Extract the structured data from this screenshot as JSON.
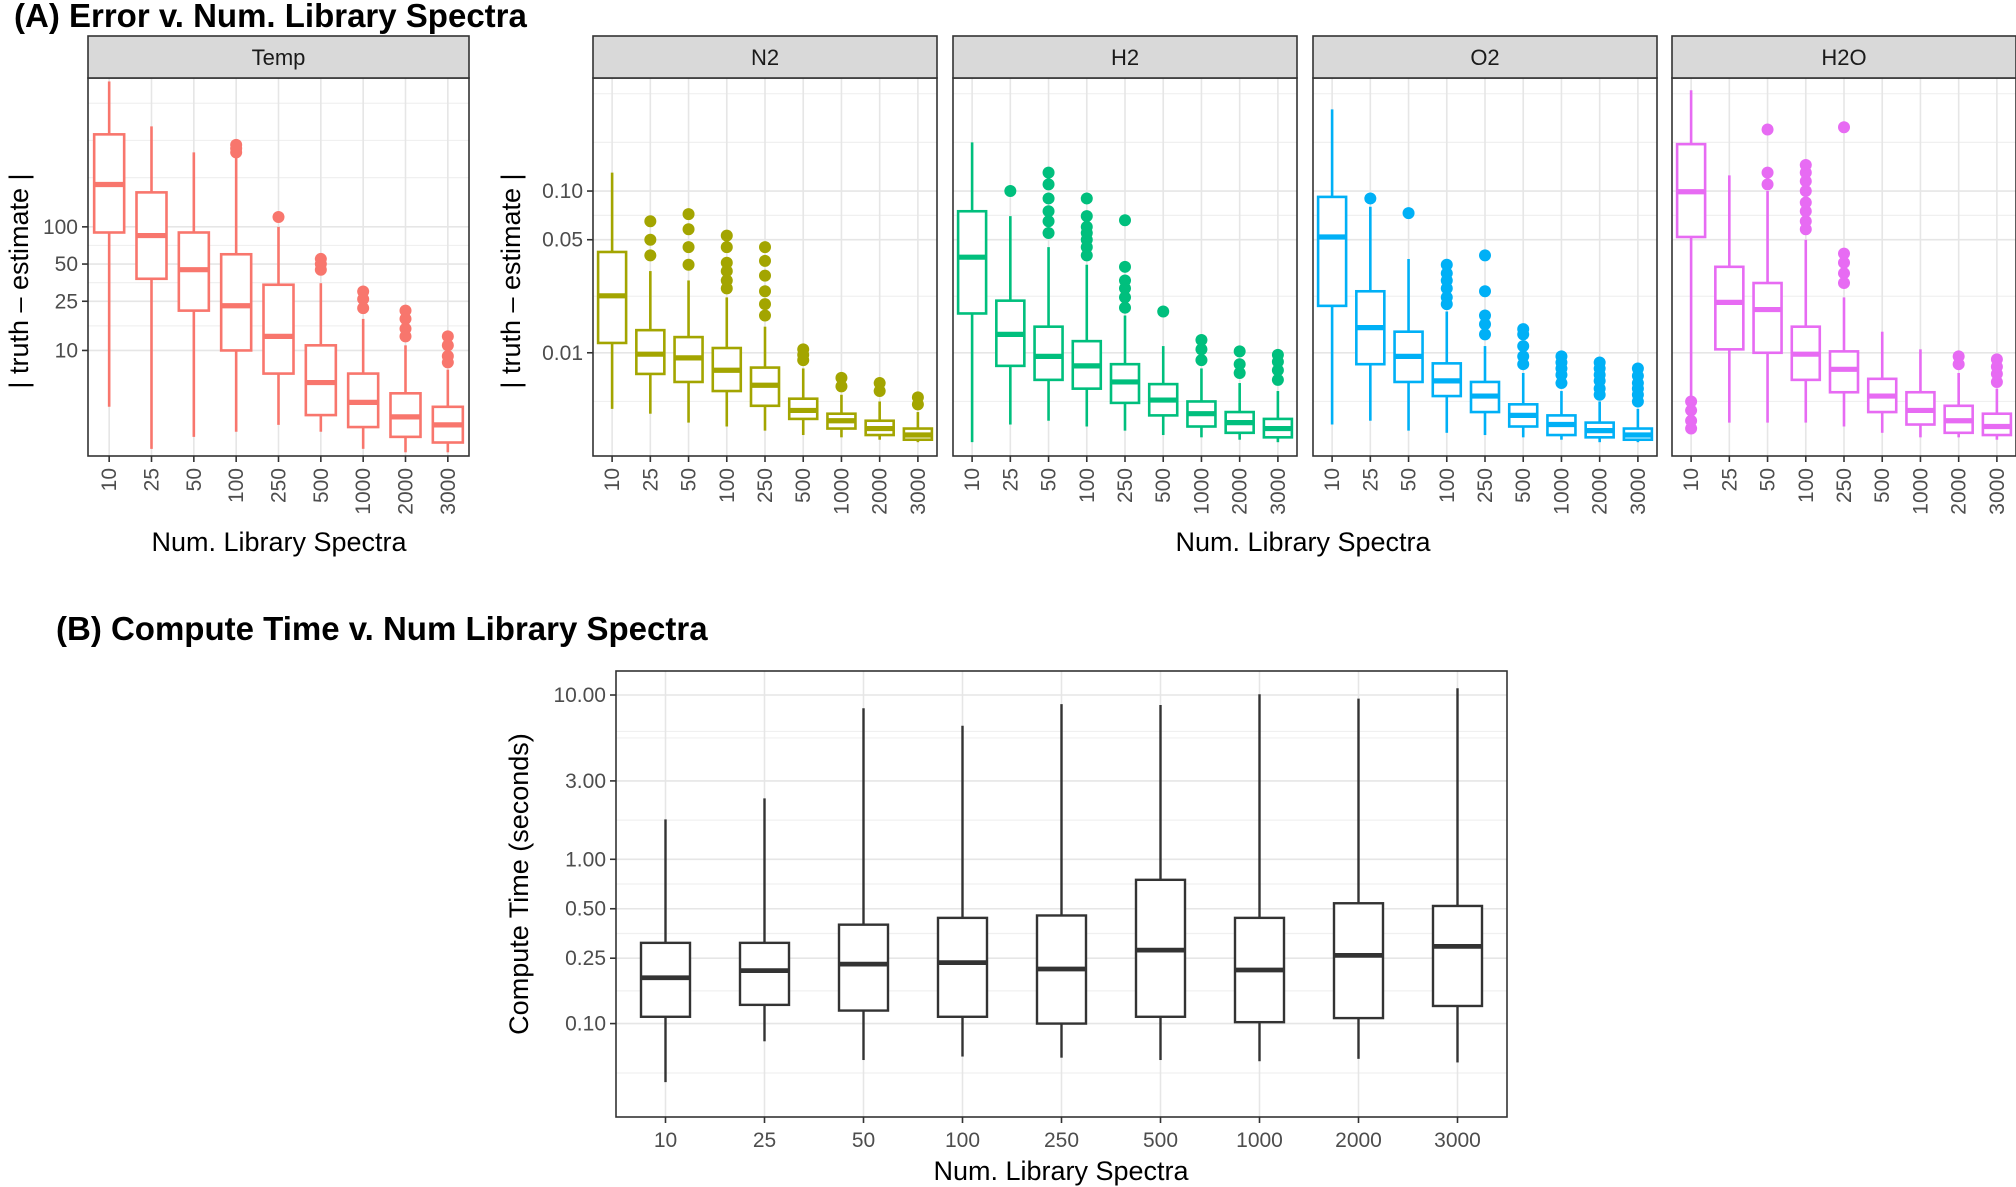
{
  "panel_a": {
    "title": "(A) Error v. Num. Library Spectra",
    "xlabel": "Num. Library Spectra",
    "ylabel": "| truth – estimate |",
    "categories": [
      "10",
      "25",
      "50",
      "100",
      "250",
      "500",
      "1000",
      "2000",
      "3000"
    ],
    "temp_facet": {
      "label": "Temp",
      "color": "#F8766D",
      "yscale": "log",
      "ylim": [
        1.4,
        1600
      ],
      "yticks": [
        {
          "v": 10,
          "label": "10"
        },
        {
          "v": 25,
          "label": "25"
        },
        {
          "v": 50,
          "label": "50"
        },
        {
          "v": 100,
          "label": "100"
        }
      ],
      "boxes": [
        {
          "whislo": 3.5,
          "q1": 90,
          "med": 220,
          "q3": 560,
          "whishi": 1500,
          "outliers": []
        },
        {
          "whislo": 1.6,
          "q1": 38,
          "med": 85,
          "q3": 190,
          "whishi": 650,
          "outliers": []
        },
        {
          "whislo": 2.0,
          "q1": 21,
          "med": 45,
          "q3": 90,
          "whishi": 400,
          "outliers": []
        },
        {
          "whislo": 2.2,
          "q1": 10,
          "med": 23,
          "q3": 60,
          "whishi": 380,
          "outliers": [
            400,
            430,
            460
          ]
        },
        {
          "whislo": 2.5,
          "q1": 6.5,
          "med": 13,
          "q3": 34,
          "whishi": 100,
          "outliers": [
            120
          ]
        },
        {
          "whislo": 2.2,
          "q1": 3.0,
          "med": 5.5,
          "q3": 11,
          "whishi": 35,
          "outliers": [
            45,
            50,
            55
          ]
        },
        {
          "whislo": 1.6,
          "q1": 2.4,
          "med": 3.8,
          "q3": 6.5,
          "whishi": 18,
          "outliers": [
            22,
            26,
            30
          ]
        },
        {
          "whislo": 1.5,
          "q1": 2.0,
          "med": 2.9,
          "q3": 4.5,
          "whishi": 11,
          "outliers": [
            13,
            15,
            18,
            21
          ]
        },
        {
          "whislo": 1.5,
          "q1": 1.8,
          "med": 2.5,
          "q3": 3.5,
          "whishi": 7,
          "outliers": [
            8,
            9,
            11,
            13
          ]
        }
      ]
    },
    "gas_yscale": "log",
    "gas_ylim": [
      0.0023,
      0.5
    ],
    "gas_yticks": [
      {
        "v": 0.01,
        "label": "0.01"
      },
      {
        "v": 0.05,
        "label": "0.05"
      },
      {
        "v": 0.1,
        "label": "0.10"
      }
    ],
    "gas_facets": [
      {
        "label": "N2",
        "color": "#A3A500",
        "boxes": [
          {
            "whislo": 0.0045,
            "q1": 0.0115,
            "med": 0.0225,
            "q3": 0.042,
            "whishi": 0.13,
            "outliers": []
          },
          {
            "whislo": 0.0042,
            "q1": 0.0074,
            "med": 0.0098,
            "q3": 0.0138,
            "whishi": 0.032,
            "outliers": [
              0.04,
              0.05,
              0.065
            ]
          },
          {
            "whislo": 0.0037,
            "q1": 0.0066,
            "med": 0.0093,
            "q3": 0.0125,
            "whishi": 0.028,
            "outliers": [
              0.035,
              0.045,
              0.058,
              0.072
            ]
          },
          {
            "whislo": 0.0035,
            "q1": 0.0058,
            "med": 0.0078,
            "q3": 0.0107,
            "whishi": 0.022,
            "outliers": [
              0.025,
              0.028,
              0.032,
              0.036,
              0.045,
              0.053
            ]
          },
          {
            "whislo": 0.0033,
            "q1": 0.0047,
            "med": 0.0063,
            "q3": 0.0081,
            "whishi": 0.0145,
            "outliers": [
              0.017,
              0.02,
              0.024,
              0.03,
              0.037,
              0.045
            ]
          },
          {
            "whislo": 0.0031,
            "q1": 0.0039,
            "med": 0.0044,
            "q3": 0.0052,
            "whishi": 0.008,
            "outliers": [
              0.009,
              0.0097,
              0.0105
            ]
          },
          {
            "whislo": 0.003,
            "q1": 0.0034,
            "med": 0.0038,
            "q3": 0.0042,
            "whishi": 0.0055,
            "outliers": [
              0.0062,
              0.007
            ]
          },
          {
            "whislo": 0.0029,
            "q1": 0.0031,
            "med": 0.0034,
            "q3": 0.0038,
            "whishi": 0.005,
            "outliers": [
              0.0058,
              0.0065
            ]
          },
          {
            "whislo": 0.0028,
            "q1": 0.0029,
            "med": 0.0031,
            "q3": 0.0034,
            "whishi": 0.0043,
            "outliers": [
              0.0048,
              0.0053
            ]
          }
        ]
      },
      {
        "label": "H2",
        "color": "#00BF7D",
        "boxes": [
          {
            "whislo": 0.0028,
            "q1": 0.0175,
            "med": 0.039,
            "q3": 0.075,
            "whishi": 0.2,
            "outliers": []
          },
          {
            "whislo": 0.0036,
            "q1": 0.0083,
            "med": 0.013,
            "q3": 0.021,
            "whishi": 0.07,
            "outliers": [
              0.1
            ]
          },
          {
            "whislo": 0.0038,
            "q1": 0.0068,
            "med": 0.0095,
            "q3": 0.0145,
            "whishi": 0.045,
            "outliers": [
              0.055,
              0.065,
              0.075,
              0.09,
              0.11,
              0.13
            ]
          },
          {
            "whislo": 0.0035,
            "q1": 0.006,
            "med": 0.0083,
            "q3": 0.0118,
            "whishi": 0.035,
            "outliers": [
              0.04,
              0.045,
              0.05,
              0.055,
              0.06,
              0.07,
              0.09
            ]
          },
          {
            "whislo": 0.0033,
            "q1": 0.0049,
            "med": 0.0066,
            "q3": 0.0085,
            "whishi": 0.017,
            "outliers": [
              0.019,
              0.022,
              0.025,
              0.028,
              0.034,
              0.066
            ]
          },
          {
            "whislo": 0.0031,
            "q1": 0.0041,
            "med": 0.0051,
            "q3": 0.0064,
            "whishi": 0.011,
            "outliers": [
              0.018
            ]
          },
          {
            "whislo": 0.003,
            "q1": 0.0035,
            "med": 0.0042,
            "q3": 0.005,
            "whishi": 0.008,
            "outliers": [
              0.009,
              0.0105,
              0.012
            ]
          },
          {
            "whislo": 0.0029,
            "q1": 0.0032,
            "med": 0.0037,
            "q3": 0.0043,
            "whishi": 0.0065,
            "outliers": [
              0.0075,
              0.0085,
              0.0102
            ]
          },
          {
            "whislo": 0.0028,
            "q1": 0.003,
            "med": 0.0034,
            "q3": 0.0039,
            "whishi": 0.0058,
            "outliers": [
              0.0068,
              0.0078,
              0.0088,
              0.0097
            ]
          }
        ]
      },
      {
        "label": "O2",
        "color": "#00B0F6",
        "boxes": [
          {
            "whislo": 0.0036,
            "q1": 0.0195,
            "med": 0.052,
            "q3": 0.092,
            "whishi": 0.32,
            "outliers": []
          },
          {
            "whislo": 0.0038,
            "q1": 0.0085,
            "med": 0.0143,
            "q3": 0.024,
            "whishi": 0.08,
            "outliers": [
              0.09
            ]
          },
          {
            "whislo": 0.0033,
            "q1": 0.0066,
            "med": 0.0095,
            "q3": 0.0135,
            "whishi": 0.038,
            "outliers": [
              0.073
            ]
          },
          {
            "whislo": 0.0032,
            "q1": 0.0054,
            "med": 0.0067,
            "q3": 0.0086,
            "whishi": 0.018,
            "outliers": [
              0.02,
              0.022,
              0.025,
              0.028,
              0.031,
              0.035
            ]
          },
          {
            "whislo": 0.0031,
            "q1": 0.0043,
            "med": 0.0054,
            "q3": 0.0066,
            "whishi": 0.011,
            "outliers": [
              0.013,
              0.015,
              0.017,
              0.024,
              0.04
            ]
          },
          {
            "whislo": 0.003,
            "q1": 0.0035,
            "med": 0.0041,
            "q3": 0.0048,
            "whishi": 0.0075,
            "outliers": [
              0.0085,
              0.0095,
              0.011,
              0.013,
              0.014
            ]
          },
          {
            "whislo": 0.0029,
            "q1": 0.0031,
            "med": 0.0036,
            "q3": 0.0041,
            "whishi": 0.0058,
            "outliers": [
              0.0065,
              0.0073,
              0.008,
              0.0087,
              0.0095
            ]
          },
          {
            "whislo": 0.0028,
            "q1": 0.003,
            "med": 0.0033,
            "q3": 0.0037,
            "whishi": 0.005,
            "outliers": [
              0.0055,
              0.006,
              0.0067,
              0.0073,
              0.008,
              0.0087
            ]
          },
          {
            "whislo": 0.0028,
            "q1": 0.0029,
            "med": 0.0031,
            "q3": 0.0034,
            "whishi": 0.0045,
            "outliers": [
              0.005,
              0.0055,
              0.006,
              0.0065,
              0.0072,
              0.008
            ]
          }
        ]
      },
      {
        "label": "H2O",
        "color": "#E76BF3",
        "boxes": [
          {
            "whislo": 0.0032,
            "q1": 0.052,
            "med": 0.099,
            "q3": 0.195,
            "whishi": 0.42,
            "outliers": [
              0.0034,
              0.0038,
              0.0044,
              0.005
            ]
          },
          {
            "whislo": 0.0037,
            "q1": 0.0105,
            "med": 0.0205,
            "q3": 0.034,
            "whishi": 0.125,
            "outliers": []
          },
          {
            "whislo": 0.0037,
            "q1": 0.01,
            "med": 0.0185,
            "q3": 0.027,
            "whishi": 0.1,
            "outliers": [
              0.11,
              0.13,
              0.24
            ]
          },
          {
            "whislo": 0.0037,
            "q1": 0.0068,
            "med": 0.0098,
            "q3": 0.0145,
            "whishi": 0.05,
            "outliers": [
              0.058,
              0.065,
              0.075,
              0.085,
              0.1,
              0.115,
              0.13,
              0.145
            ]
          },
          {
            "whislo": 0.0035,
            "q1": 0.0057,
            "med": 0.0079,
            "q3": 0.0102,
            "whishi": 0.022,
            "outliers": [
              0.027,
              0.031,
              0.036,
              0.041,
              0.248
            ]
          },
          {
            "whislo": 0.0032,
            "q1": 0.0043,
            "med": 0.0054,
            "q3": 0.0069,
            "whishi": 0.0135,
            "outliers": []
          },
          {
            "whislo": 0.003,
            "q1": 0.0036,
            "med": 0.0044,
            "q3": 0.0057,
            "whishi": 0.0105,
            "outliers": []
          },
          {
            "whislo": 0.003,
            "q1": 0.0032,
            "med": 0.0038,
            "q3": 0.0047,
            "whishi": 0.0075,
            "outliers": [
              0.0085,
              0.0095
            ]
          },
          {
            "whislo": 0.0029,
            "q1": 0.0031,
            "med": 0.0035,
            "q3": 0.0042,
            "whishi": 0.006,
            "outliers": [
              0.0066,
              0.0074,
              0.0082,
              0.0091
            ]
          }
        ]
      }
    ]
  },
  "panel_b": {
    "title": "(B) Compute Time v. Num Library Spectra",
    "xlabel": "Num. Library Spectra",
    "ylabel": "Compute Time (seconds)",
    "categories": [
      "10",
      "25",
      "50",
      "100",
      "250",
      "500",
      "1000",
      "2000",
      "3000"
    ],
    "color": "#333333",
    "yscale": "log",
    "ylim": [
      0.027,
      14
    ],
    "yticks": [
      {
        "v": 0.1,
        "label": "0.10"
      },
      {
        "v": 0.25,
        "label": "0.25"
      },
      {
        "v": 0.5,
        "label": "0.50"
      },
      {
        "v": 1,
        "label": "1.00"
      },
      {
        "v": 3,
        "label": "3.00"
      },
      {
        "v": 10,
        "label": "10.00"
      }
    ],
    "boxes": [
      {
        "whislo": 0.044,
        "q1": 0.11,
        "med": 0.19,
        "q3": 0.31,
        "whishi": 1.75
      },
      {
        "whislo": 0.078,
        "q1": 0.13,
        "med": 0.21,
        "q3": 0.31,
        "whishi": 2.35
      },
      {
        "whislo": 0.06,
        "q1": 0.12,
        "med": 0.23,
        "q3": 0.4,
        "whishi": 8.3
      },
      {
        "whislo": 0.063,
        "q1": 0.11,
        "med": 0.235,
        "q3": 0.44,
        "whishi": 6.5
      },
      {
        "whislo": 0.062,
        "q1": 0.1,
        "med": 0.215,
        "q3": 0.455,
        "whishi": 8.8
      },
      {
        "whislo": 0.06,
        "q1": 0.11,
        "med": 0.28,
        "q3": 0.75,
        "whishi": 8.7
      },
      {
        "whislo": 0.059,
        "q1": 0.102,
        "med": 0.212,
        "q3": 0.44,
        "whishi": 10.1
      },
      {
        "whislo": 0.061,
        "q1": 0.108,
        "med": 0.26,
        "q3": 0.54,
        "whishi": 9.5
      },
      {
        "whislo": 0.058,
        "q1": 0.128,
        "med": 0.295,
        "q3": 0.52,
        "whishi": 11
      }
    ]
  },
  "chart_data": [
    {
      "type": "boxplot",
      "title": "(A) Error v. Num. Library Spectra",
      "facet": "Temp",
      "xlabel": "Num. Library Spectra",
      "ylabel": "| truth – estimate |",
      "yscale": "log",
      "categories": [
        "10",
        "25",
        "50",
        "100",
        "250",
        "500",
        "1000",
        "2000",
        "3000"
      ],
      "medians": [
        220,
        85,
        45,
        23,
        13,
        5.5,
        3.8,
        2.9,
        2.5
      ]
    },
    {
      "type": "boxplot",
      "title": "(A) Error v. Num. Library Spectra",
      "facets": [
        "N2",
        "H2",
        "O2",
        "H2O"
      ],
      "xlabel": "Num. Library Spectra",
      "ylabel": "| truth – estimate |",
      "yscale": "log",
      "categories": [
        "10",
        "25",
        "50",
        "100",
        "250",
        "500",
        "1000",
        "2000",
        "3000"
      ],
      "series": [
        {
          "name": "N2",
          "medians": [
            0.0225,
            0.0098,
            0.0093,
            0.0078,
            0.0063,
            0.0044,
            0.0038,
            0.0034,
            0.0031
          ]
        },
        {
          "name": "H2",
          "medians": [
            0.039,
            0.013,
            0.0095,
            0.0083,
            0.0066,
            0.0051,
            0.0042,
            0.0037,
            0.0034
          ]
        },
        {
          "name": "O2",
          "medians": [
            0.052,
            0.0143,
            0.0095,
            0.0067,
            0.0054,
            0.0041,
            0.0036,
            0.0033,
            0.0031
          ]
        },
        {
          "name": "H2O",
          "medians": [
            0.099,
            0.0205,
            0.0185,
            0.0098,
            0.0079,
            0.0054,
            0.0044,
            0.0038,
            0.0035
          ]
        }
      ]
    },
    {
      "type": "boxplot",
      "title": "(B) Compute Time v. Num Library Spectra",
      "xlabel": "Num. Library Spectra",
      "ylabel": "Compute Time (seconds)",
      "yscale": "log",
      "categories": [
        "10",
        "25",
        "50",
        "100",
        "250",
        "500",
        "1000",
        "2000",
        "3000"
      ],
      "medians": [
        0.19,
        0.21,
        0.23,
        0.235,
        0.215,
        0.28,
        0.212,
        0.26,
        0.295
      ]
    }
  ]
}
